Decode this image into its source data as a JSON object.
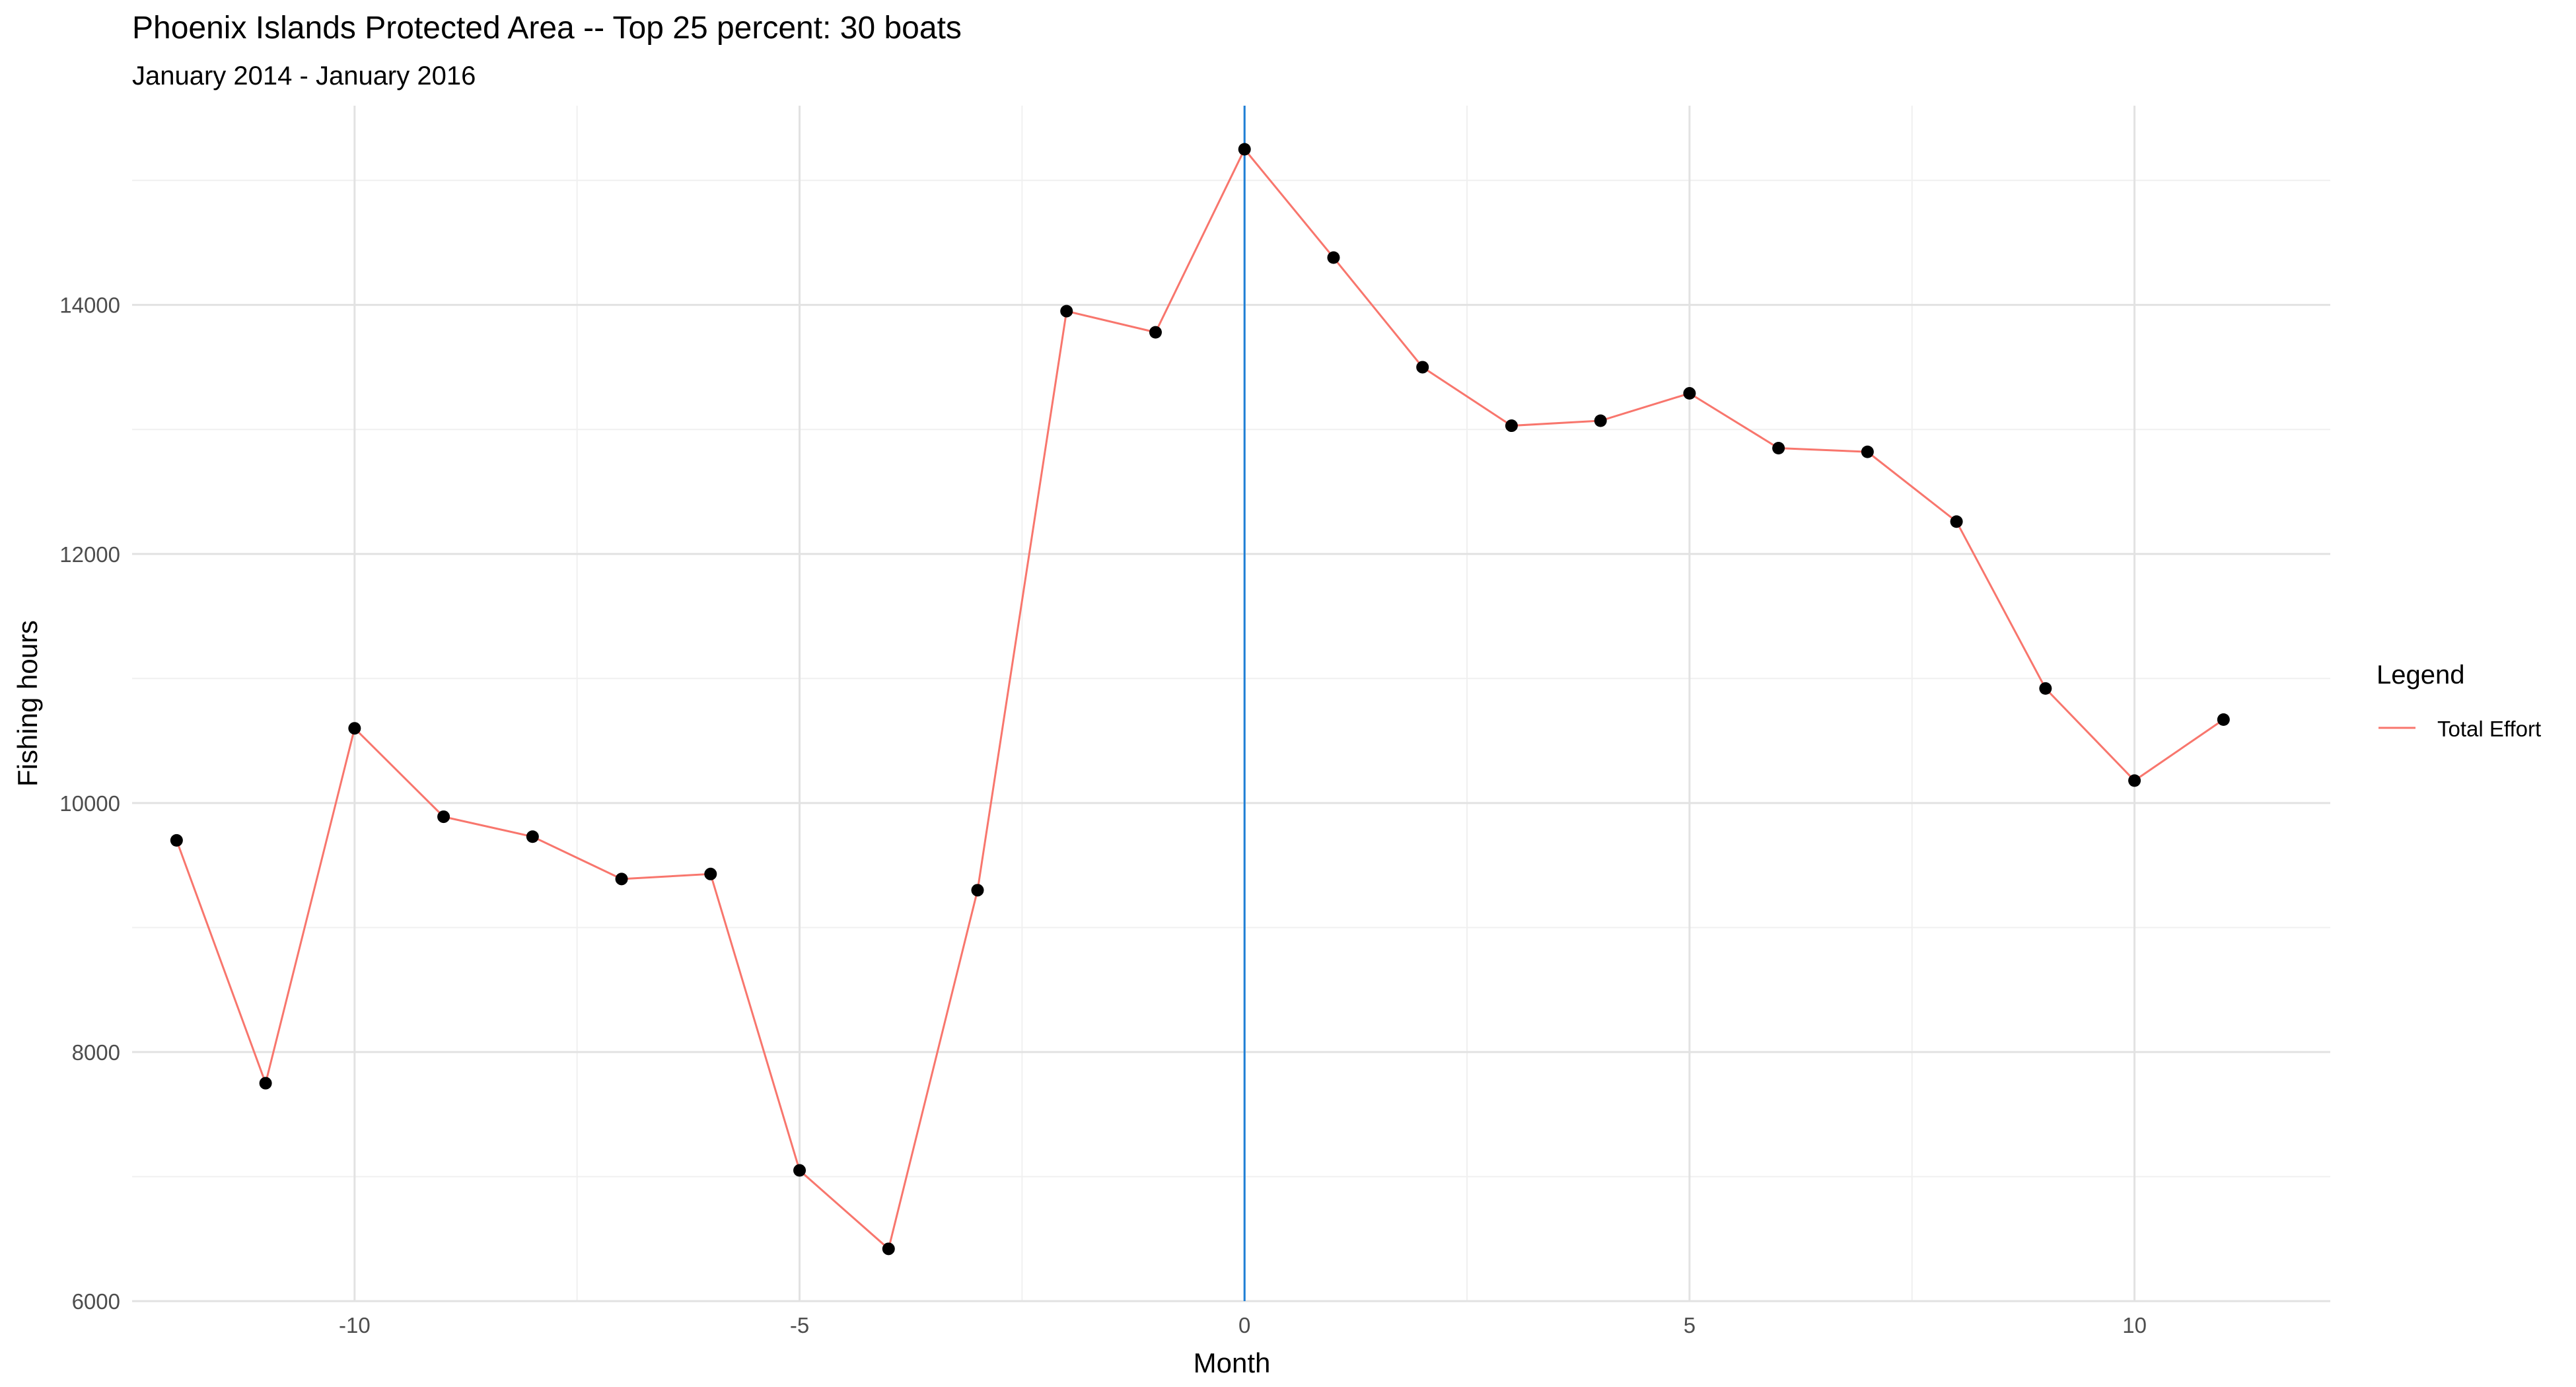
{
  "chart_data": {
    "type": "line",
    "title": "Phoenix Islands Protected Area -- Top 25 percent: 30 boats",
    "subtitle": "January 2014 - January 2016",
    "xlabel": "Month",
    "ylabel": "Fishing hours",
    "xlim": [
      -12.5,
      12.2
    ],
    "ylim": [
      6000,
      15600
    ],
    "x_ticks": [
      -10,
      -5,
      0,
      5,
      10
    ],
    "x_tick_labels": [
      "-10",
      "-5",
      "0",
      "5",
      "10"
    ],
    "y_ticks": [
      6000,
      8000,
      10000,
      12000,
      14000
    ],
    "y_tick_labels": [
      "6000",
      "8000",
      "10000",
      "12000",
      "14000"
    ],
    "grid": true,
    "vline": {
      "x": 0,
      "color": "#1f7fd6"
    },
    "legend": {
      "title": "Legend",
      "position": "right",
      "entries": [
        {
          "label": "Total Effort",
          "color": "#f8766d"
        }
      ]
    },
    "series": [
      {
        "name": "Total Effort",
        "color": "#f8766d",
        "point_color": "#000000",
        "x": [
          -12,
          -11,
          -10,
          -9,
          -8,
          -7,
          -6,
          -5,
          -4,
          -3,
          -2,
          -1,
          0,
          1,
          2,
          3,
          4,
          5,
          6,
          7,
          8,
          9,
          10,
          11
        ],
        "y": [
          9700,
          7750,
          10600,
          9890,
          9730,
          9390,
          9430,
          7050,
          6420,
          9300,
          13950,
          13780,
          15250,
          14380,
          13500,
          13030,
          13070,
          13290,
          12850,
          12820,
          12260,
          10920,
          10180,
          10670
        ]
      }
    ]
  }
}
